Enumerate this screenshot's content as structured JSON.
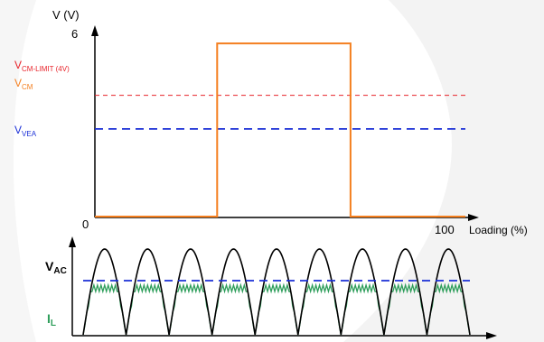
{
  "colors": {
    "background": "#ffffff",
    "watermark": "#f0f0f0",
    "axis": "#000000",
    "vcm_limit": "#e8232a",
    "vcm": "#f47f1f",
    "vvea": "#1a2fd6",
    "vac": "#000000",
    "il": "#2e9e5b"
  },
  "top_chart": {
    "y_axis_label": "V (V)",
    "y_tick_max": "6",
    "origin_label": "0",
    "x_tick_end": "100",
    "x_axis_label": "Loading (%)",
    "levels": {
      "vcm_limit": 4,
      "vvea": 2.9
    },
    "vcm_pulse": {
      "low": 0,
      "high": 5.7,
      "start_pct": 33,
      "end_pct": 69
    },
    "legend": {
      "vcm_limit": {
        "main": "V",
        "sub": "CM-LIMIT (4V)"
      },
      "vcm": {
        "main": "V",
        "sub": "CM"
      },
      "vvea": {
        "main": "V",
        "sub": "VEA"
      }
    }
  },
  "bottom_chart": {
    "vac_label": {
      "main": "V",
      "sub": "AC"
    },
    "il_label": {
      "main": "I",
      "sub": "L"
    },
    "half_cycles": 9,
    "vea_level": 0.6,
    "il_clip_level": 0.58,
    "il_ripple_teeth": 12
  }
}
